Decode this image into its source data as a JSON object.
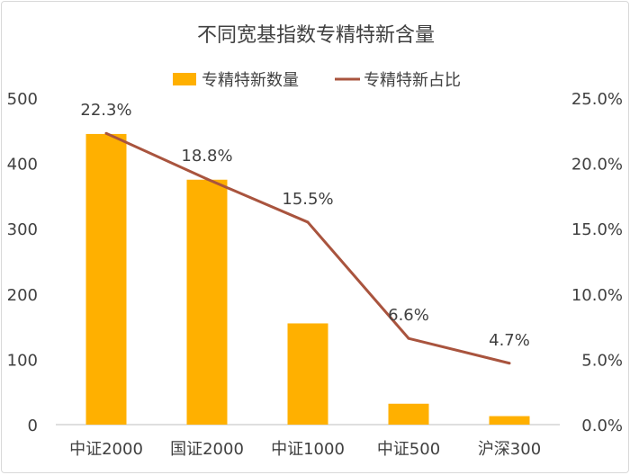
{
  "chart_data": {
    "type": "bar",
    "title": "不同宽基指数专精特新含量",
    "categories": [
      "中证2000",
      "国证2000",
      "中证1000",
      "中证500",
      "沪深300"
    ],
    "series": [
      {
        "name": "专精特新数量",
        "type": "bar",
        "axis": "left",
        "color": "#FFB000",
        "values": [
          445,
          375,
          155,
          32,
          13
        ]
      },
      {
        "name": "专精特新占比",
        "type": "line",
        "axis": "right",
        "color": "#A9543E",
        "values": [
          22.3,
          18.8,
          15.5,
          6.6,
          4.7
        ],
        "labels": [
          "22.3%",
          "18.8%",
          "15.5%",
          "6.6%",
          "4.7%"
        ]
      }
    ],
    "y_left": {
      "ticks": [
        "0",
        "100",
        "200",
        "300",
        "400",
        "500"
      ],
      "range": [
        0,
        500
      ]
    },
    "y_right": {
      "ticks": [
        "0.0%",
        "5.0%",
        "10.0%",
        "15.0%",
        "20.0%",
        "25.0%"
      ],
      "range": [
        0,
        25
      ]
    },
    "legend_position": "top",
    "grid": false
  }
}
